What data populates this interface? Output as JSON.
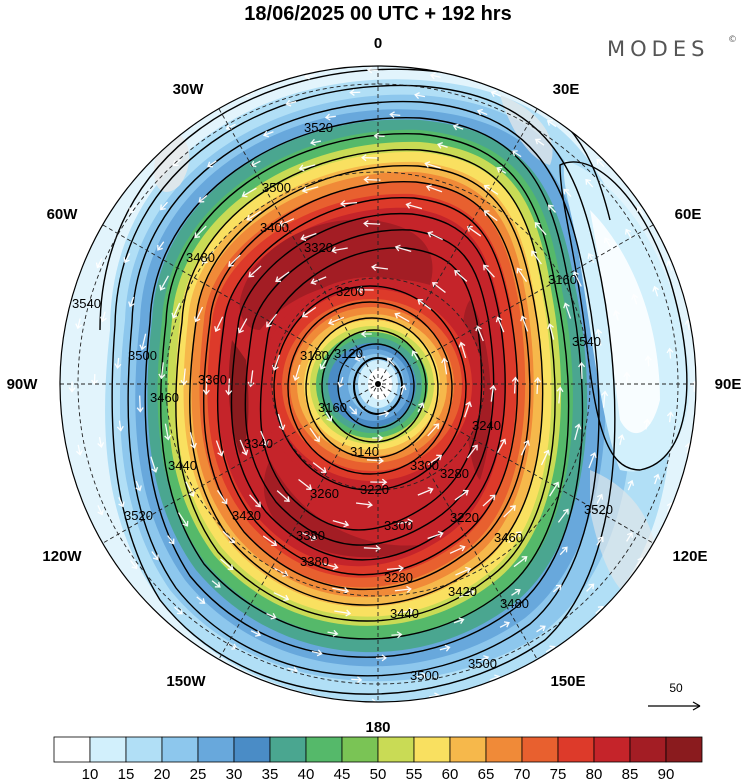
{
  "title": "18/06/2025  00 UTC  + 192 hrs",
  "brand": {
    "name": "MODES",
    "mark": "©"
  },
  "map": {
    "projection": "polar-stereographic-south",
    "longitude_labels": [
      {
        "text": "0",
        "lon": 0
      },
      {
        "text": "30E",
        "lon": 30
      },
      {
        "text": "60E",
        "lon": 60
      },
      {
        "text": "90E",
        "lon": 90
      },
      {
        "text": "120E",
        "lon": 120
      },
      {
        "text": "150E",
        "lon": 150
      },
      {
        "text": "180",
        "lon": 180
      },
      {
        "text": "150W",
        "lon": -150
      },
      {
        "text": "120W",
        "lon": -120
      },
      {
        "text": "90W",
        "lon": -90
      },
      {
        "text": "60W",
        "lon": -60
      },
      {
        "text": "30W",
        "lon": -30
      }
    ],
    "contour_labels": [
      "3520",
      "3500",
      "3480",
      "3460",
      "3440",
      "3420",
      "3400",
      "3380",
      "3360",
      "3340",
      "3320",
      "3300",
      "3280",
      "3260",
      "3240",
      "3220",
      "3200",
      "3180",
      "3160",
      "3140",
      "3120",
      "3540",
      "3500",
      "3520",
      "3540",
      "3460",
      "3480",
      "3520",
      "3500",
      "3500",
      "3440",
      "3420",
      "3380",
      "3300",
      "3280",
      "3220",
      "3160"
    ],
    "vector_reference": {
      "label": "50"
    }
  },
  "colorbar": {
    "ticks": [
      "10",
      "15",
      "20",
      "25",
      "30",
      "35",
      "40",
      "45",
      "50",
      "55",
      "60",
      "65",
      "70",
      "75",
      "80",
      "85",
      "90"
    ],
    "colors": [
      "#ffffff",
      "#d2f0fc",
      "#b1dff6",
      "#8dc7ed",
      "#68a8dc",
      "#4a8cc6",
      "#4aa690",
      "#55b96a",
      "#7ac455",
      "#c9db55",
      "#f9e060",
      "#f6b84b",
      "#f08a38",
      "#e8602f",
      "#dd3a2a",
      "#c5242a",
      "#a31d24",
      "#8a1b1e"
    ]
  },
  "colors": {
    "jet_core": "#a31d24",
    "background": "#ffffff"
  }
}
